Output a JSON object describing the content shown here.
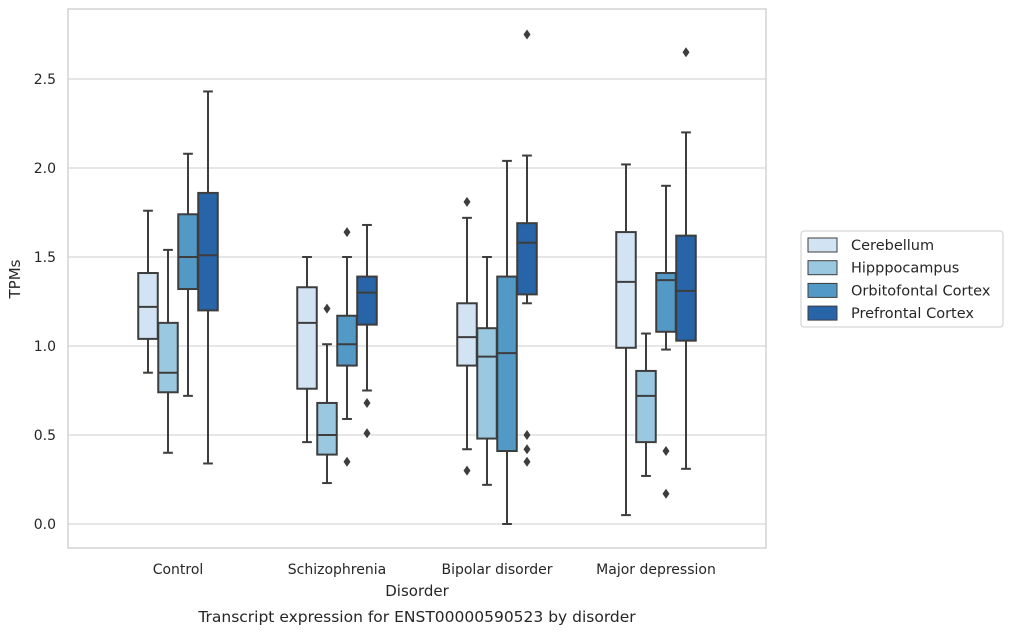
{
  "chart_data": {
    "type": "box",
    "xlabel": "Disorder",
    "ylabel": "TPMs",
    "caption": "Transcript expression for ENST00000590523 by disorder",
    "ylim": [
      -0.13,
      2.9
    ],
    "yticks": [
      0.0,
      0.5,
      1.0,
      1.5,
      2.0,
      2.5
    ],
    "ytick_labels": [
      "0.0",
      "0.5",
      "1.0",
      "1.5",
      "2.0",
      "2.5"
    ],
    "grid": "horizontal",
    "legend_position": "right",
    "categories": [
      "Control",
      "Schizophrenia",
      "Bipolar disorder",
      "Major depression"
    ],
    "series": [
      {
        "name": "Cerebellum",
        "color": "#d2e3f3",
        "boxes": [
          {
            "whisker_low": 0.85,
            "q1": 1.04,
            "median": 1.22,
            "q3": 1.41,
            "whisker_high": 1.76,
            "outliers": []
          },
          {
            "whisker_low": 0.46,
            "q1": 0.76,
            "median": 1.13,
            "q3": 1.33,
            "whisker_high": 1.5,
            "outliers": []
          },
          {
            "whisker_low": 0.42,
            "q1": 0.89,
            "median": 1.05,
            "q3": 1.24,
            "whisker_high": 1.72,
            "outliers": [
              0.3,
              1.81
            ]
          },
          {
            "whisker_low": 0.05,
            "q1": 0.99,
            "median": 1.36,
            "q3": 1.64,
            "whisker_high": 2.02,
            "outliers": []
          }
        ]
      },
      {
        "name": "Hipppocampus",
        "color": "#9ac8e0",
        "boxes": [
          {
            "whisker_low": 0.4,
            "q1": 0.74,
            "median": 0.85,
            "q3": 1.13,
            "whisker_high": 1.54,
            "outliers": []
          },
          {
            "whisker_low": 0.23,
            "q1": 0.39,
            "median": 0.5,
            "q3": 0.68,
            "whisker_high": 1.01,
            "outliers": [
              1.21
            ]
          },
          {
            "whisker_low": 0.22,
            "q1": 0.48,
            "median": 0.94,
            "q3": 1.1,
            "whisker_high": 1.5,
            "outliers": []
          },
          {
            "whisker_low": 0.27,
            "q1": 0.46,
            "median": 0.72,
            "q3": 0.86,
            "whisker_high": 1.07,
            "outliers": []
          }
        ]
      },
      {
        "name": "Orbitofontal Cortex",
        "color": "#5399c6",
        "boxes": [
          {
            "whisker_low": 0.72,
            "q1": 1.32,
            "median": 1.5,
            "q3": 1.74,
            "whisker_high": 2.08,
            "outliers": []
          },
          {
            "whisker_low": 0.59,
            "q1": 0.89,
            "median": 1.01,
            "q3": 1.17,
            "whisker_high": 1.5,
            "outliers": [
              0.35,
              1.64
            ]
          },
          {
            "whisker_low": 0.0,
            "q1": 0.41,
            "median": 0.96,
            "q3": 1.39,
            "whisker_high": 2.04,
            "outliers": []
          },
          {
            "whisker_low": 0.98,
            "q1": 1.08,
            "median": 1.37,
            "q3": 1.41,
            "whisker_high": 1.9,
            "outliers": [
              0.17,
              0.41
            ]
          }
        ]
      },
      {
        "name": "Prefrontal Cortex",
        "color": "#2764a8",
        "boxes": [
          {
            "whisker_low": 0.34,
            "q1": 1.2,
            "median": 1.51,
            "q3": 1.86,
            "whisker_high": 2.43,
            "outliers": []
          },
          {
            "whisker_low": 0.75,
            "q1": 1.12,
            "median": 1.3,
            "q3": 1.39,
            "whisker_high": 1.68,
            "outliers": [
              0.51,
              0.68
            ]
          },
          {
            "whisker_low": 1.24,
            "q1": 1.29,
            "median": 1.58,
            "q3": 1.69,
            "whisker_high": 2.07,
            "outliers": [
              0.35,
              0.42,
              0.5,
              2.75
            ]
          },
          {
            "whisker_low": 0.31,
            "q1": 1.03,
            "median": 1.31,
            "q3": 1.62,
            "whisker_high": 2.2,
            "outliers": [
              2.65
            ]
          }
        ]
      }
    ]
  }
}
